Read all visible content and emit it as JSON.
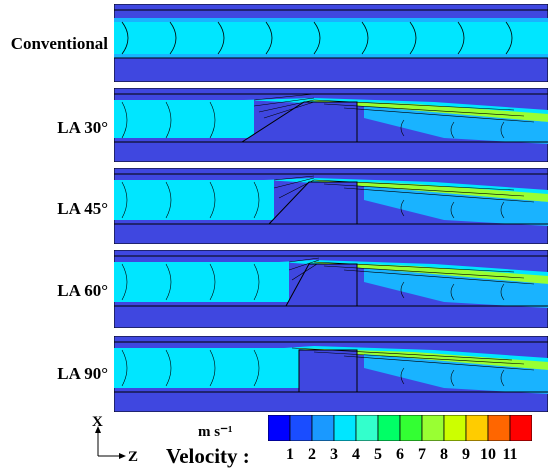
{
  "panels": [
    {
      "label": "Conventional",
      "geometry": "none"
    },
    {
      "label": "LA 30°",
      "geometry": "ramp-30"
    },
    {
      "label": "LA 45°",
      "geometry": "ramp-45"
    },
    {
      "label": "LA 60°",
      "geometry": "ramp-60"
    },
    {
      "label": "LA 90°",
      "geometry": "step-90"
    }
  ],
  "legend": {
    "title": "Velocity :",
    "unit": "m s⁻¹",
    "ticks": [
      "1",
      "2",
      "3",
      "4",
      "5",
      "6",
      "7",
      "8",
      "9",
      "10",
      "11"
    ],
    "colors": [
      "#0000ff",
      "#1a4dff",
      "#1a99ff",
      "#00e6ff",
      "#33ffcc",
      "#00ff66",
      "#33ff33",
      "#99ff33",
      "#ccff00",
      "#ffcc00",
      "#ff6600",
      "#ff0000"
    ]
  },
  "axes": {
    "x": "X",
    "z": "Z"
  },
  "colors": {
    "border": "#000000",
    "base": "#3f47e0",
    "core": "#00e6ff",
    "mid": "#19b3ff",
    "jet": "#99ff33"
  }
}
